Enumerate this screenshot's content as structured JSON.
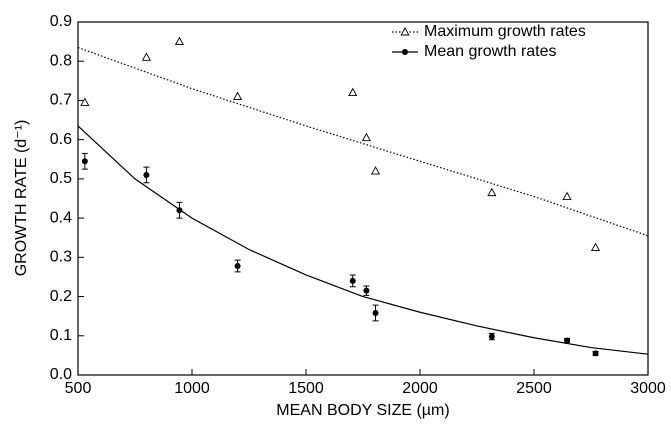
{
  "chart_data": {
    "type": "scatter",
    "xlabel": "MEAN BODY SIZE (µm)",
    "ylabel": "GROWTH RATE (d⁻¹)",
    "xlim": [
      500,
      3000
    ],
    "xticks": [
      500,
      1000,
      1500,
      2000,
      2500,
      3000
    ],
    "ylim": [
      0,
      0.9
    ],
    "yticks": [
      {
        "value": 0,
        "label": "0.0"
      },
      0.1,
      0.2,
      0.3,
      0.4,
      0.5,
      0.6,
      0.7,
      0.8,
      0.9
    ],
    "legend": "upper right",
    "series": [
      {
        "name": "Maximum growth rates",
        "color": "#000000",
        "marker": "triangle",
        "fit_style": "dotted",
        "x": [
          530,
          800,
          945,
          1200,
          1705,
          1765,
          1805,
          2315,
          2645,
          2770
        ],
        "values": [
          0.695,
          0.81,
          0.85,
          0.71,
          0.72,
          0.605,
          0.52,
          0.465,
          0.455,
          0.325
        ],
        "fit_x": [
          500,
          1000,
          1500,
          2000,
          2500,
          3000
        ],
        "fit_values": [
          0.835,
          0.73,
          0.635,
          0.545,
          0.455,
          0.355
        ]
      },
      {
        "name": "Mean growth rates",
        "color": "#000000",
        "marker": "circle",
        "fit_style": "solid",
        "x": [
          530,
          800,
          945,
          1200,
          1705,
          1765,
          1805,
          2315,
          2645,
          2770
        ],
        "values": [
          0.545,
          0.51,
          0.42,
          0.278,
          0.24,
          0.215,
          0.158,
          0.098,
          0.088,
          0.055
        ],
        "errors": [
          0.02,
          0.02,
          0.02,
          0.015,
          0.015,
          0.012,
          0.02,
          0.008,
          0.005,
          0.005
        ],
        "fit_x": [
          500,
          750,
          1000,
          1250,
          1500,
          1750,
          2000,
          2250,
          2500,
          2750,
          3000
        ],
        "fit_values": [
          0.635,
          0.5,
          0.4,
          0.32,
          0.255,
          0.2,
          0.16,
          0.125,
          0.095,
          0.07,
          0.053
        ]
      }
    ]
  }
}
